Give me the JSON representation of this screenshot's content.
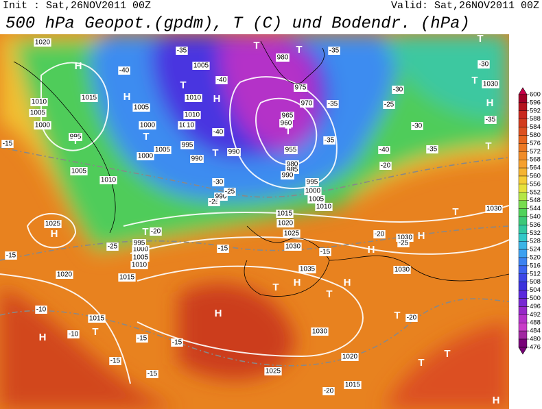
{
  "header": {
    "init": "Init : Sat,26NOV2011 00Z",
    "valid": "Valid: Sat,26NOV2011 00Z",
    "title": "500 hPa Geopot.(gpdm), T (C) und Bodendr. (hPa)"
  },
  "colorbar": {
    "levels": [
      600,
      596,
      592,
      588,
      584,
      580,
      576,
      572,
      568,
      564,
      560,
      556,
      552,
      548,
      544,
      540,
      536,
      532,
      528,
      524,
      520,
      516,
      512,
      508,
      504,
      500,
      496,
      492,
      488,
      484,
      480,
      476
    ],
    "colors": [
      "#c8004a",
      "#a00028",
      "#b4141e",
      "#c8281e",
      "#d23c1e",
      "#dc5020",
      "#e6641e",
      "#eb7823",
      "#f08c28",
      "#f5a02d",
      "#f5b432",
      "#f5cd37",
      "#e6e13c",
      "#b4e646",
      "#78dc50",
      "#50d25a",
      "#3cc878",
      "#32c8a0",
      "#32c8c8",
      "#3cb4e6",
      "#3ca0f0",
      "#3c82f0",
      "#3c64f0",
      "#3c46e6",
      "#3c32dc",
      "#5a28dc",
      "#7828d2",
      "#9628c8",
      "#b432c8",
      "#c83cc8",
      "#a028a0",
      "#780078"
    ]
  },
  "map_labels": {
    "pressure": [
      1020,
      1015,
      1010,
      1005,
      1000,
      995,
      1005,
      1010,
      1025,
      1020,
      1015,
      1010,
      1005,
      1000,
      995,
      1005,
      1010,
      1005,
      1000,
      1010,
      1010,
      1005,
      1000,
      995,
      990,
      990,
      990,
      980,
      975,
      970,
      965,
      960,
      955,
      980,
      985,
      990,
      995,
      1000,
      1005,
      1010,
      1015,
      1020,
      1025,
      1030,
      1035,
      1030,
      1030,
      1030,
      1030,
      1020,
      1025,
      1015,
      1015,
      1030
    ],
    "temperature": [
      -35,
      -40,
      -35,
      -30,
      -30,
      -25,
      -35,
      -30,
      -35,
      -35,
      -40,
      -20,
      -35,
      -40,
      -40,
      -30,
      -25,
      -25,
      -20,
      -15,
      -15,
      -25,
      -20,
      -15,
      -10,
      -10,
      -15,
      -15,
      -15,
      -15,
      -20,
      -20,
      -15,
      -25
    ],
    "centers": [
      "H",
      "T",
      "H",
      "T",
      "H",
      "T",
      "T",
      "T",
      "T",
      "T",
      "T",
      "T",
      "H",
      "T",
      "H",
      "T",
      "H",
      "T",
      "H",
      "T",
      "H",
      "H",
      "H",
      "T",
      "T",
      "T",
      "T",
      "H",
      "T",
      "T",
      "T",
      "H"
    ]
  }
}
